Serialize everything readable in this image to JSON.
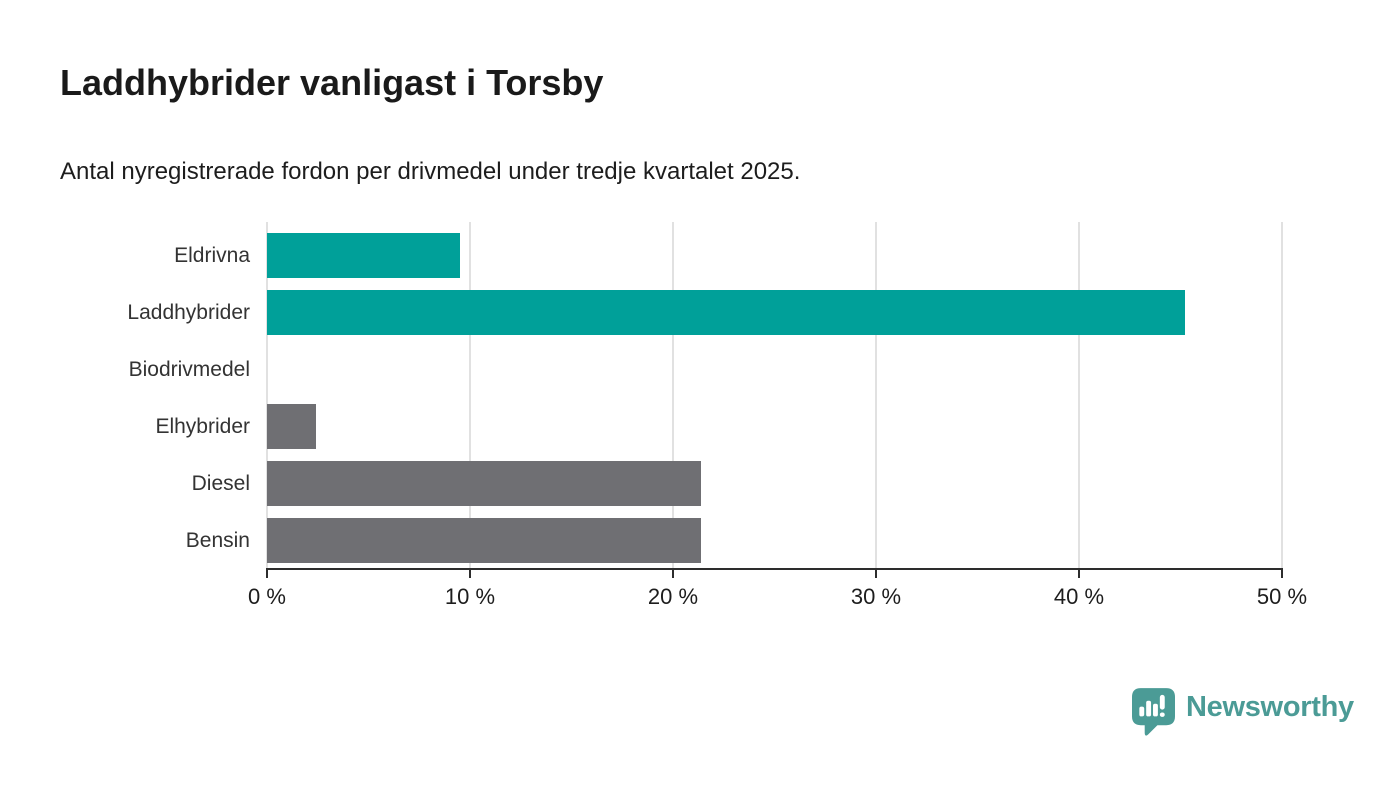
{
  "header": {
    "title": "Laddhybrider vanligast i Torsby",
    "subtitle": "Antal nyregistrerade fordon per drivmedel under tredje kvartalet 2025."
  },
  "chart_data": {
    "type": "bar",
    "orientation": "horizontal",
    "title": "Laddhybrider vanligast i Torsby",
    "subtitle": "Antal nyregistrerade fordon per drivmedel under tredje kvartalet 2025.",
    "categories": [
      "Eldrivna",
      "Laddhybrider",
      "Biodrivmedel",
      "Elhybrider",
      "Diesel",
      "Bensin"
    ],
    "values": [
      9.5,
      45.2,
      0,
      2.4,
      21.4,
      21.4
    ],
    "unit": "%",
    "bar_colors": [
      "#00a099",
      "#00a099",
      "#6f6f73",
      "#6f6f73",
      "#6f6f73",
      "#6f6f73"
    ],
    "xlabel": "",
    "ylabel": "",
    "xlim": [
      0,
      50
    ],
    "x_ticks": [
      "0 %",
      "10 %",
      "20 %",
      "30 %",
      "40 %",
      "50 %"
    ],
    "x_tick_values": [
      0,
      10,
      20,
      30,
      40,
      50
    ],
    "grid": true,
    "legend": false
  },
  "footer": {
    "brand": "Newsworthy"
  },
  "colors": {
    "teal": "#00a099",
    "gray": "#6f6f73",
    "gridline": "#e1e1e1",
    "axis": "#2d2d2d",
    "brand_teal": "#4b9b96"
  }
}
